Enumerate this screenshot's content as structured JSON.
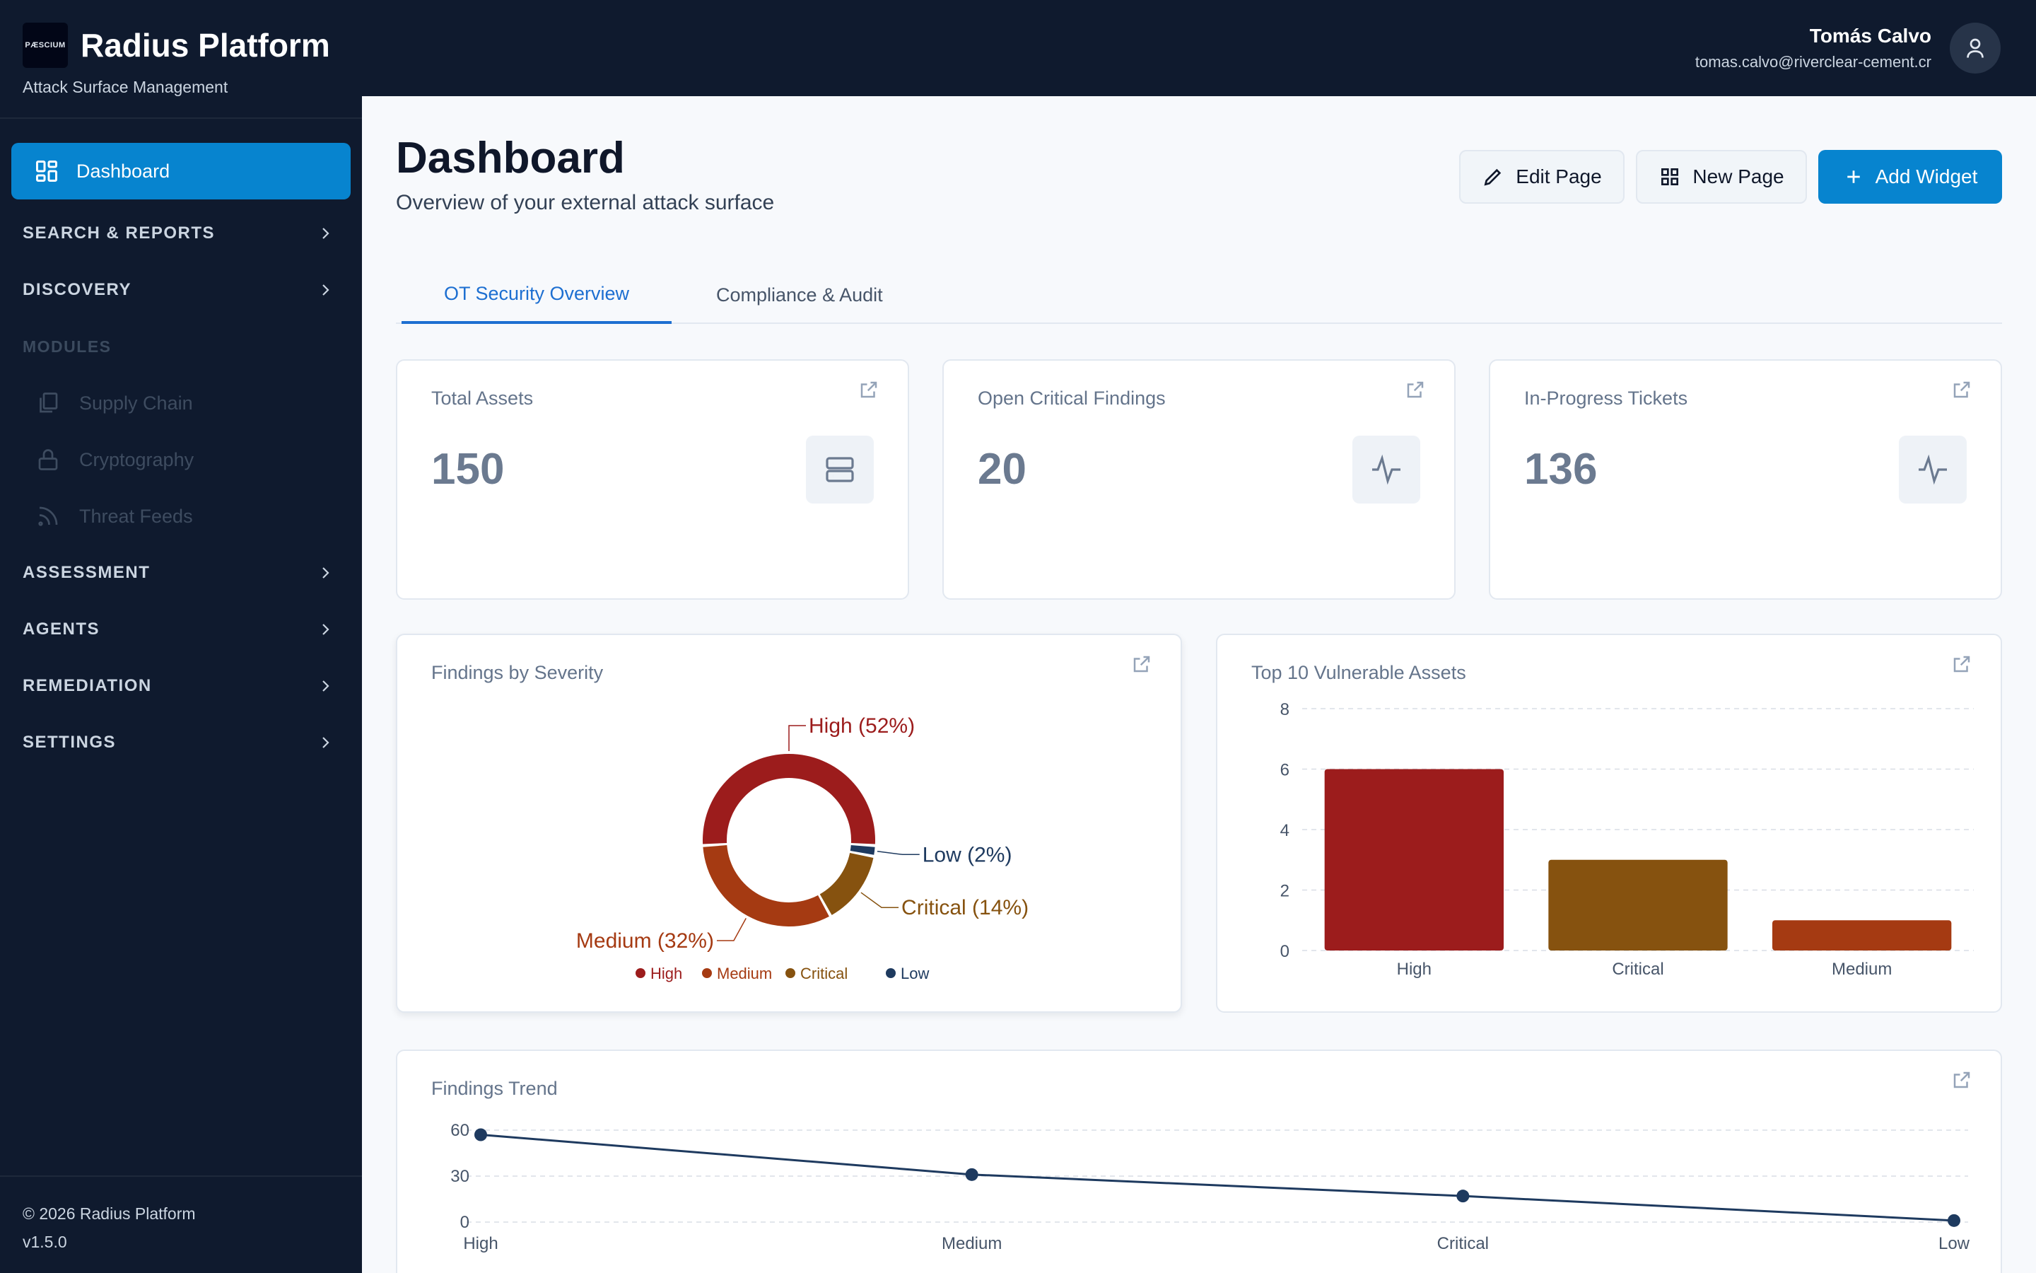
{
  "app": {
    "logo_text": "PÆSCIUM",
    "title": "Radius Platform",
    "subtitle": "Attack Surface Management"
  },
  "sidebar": {
    "active_item": "Dashboard",
    "sections": [
      {
        "label": "SEARCH & REPORTS"
      },
      {
        "label": "DISCOVERY"
      }
    ],
    "modules_label": "MODULES",
    "modules": [
      "Supply Chain",
      "Cryptography",
      "Threat Feeds"
    ],
    "sections_after": [
      {
        "label": "ASSESSMENT"
      },
      {
        "label": "AGENTS"
      },
      {
        "label": "REMEDIATION"
      },
      {
        "label": "SETTINGS"
      }
    ],
    "footer_copyright": "© 2026 Radius Platform",
    "footer_version": "v1.5.0"
  },
  "user": {
    "name": "Tomás Calvo",
    "email": "tomas.calvo@riverclear-cement.cr"
  },
  "page": {
    "title": "Dashboard",
    "subtitle": "Overview of your external attack surface",
    "buttons": {
      "edit": "Edit Page",
      "new": "New Page",
      "add": "Add Widget"
    },
    "tabs": [
      "OT Security Overview",
      "Compliance & Audit"
    ]
  },
  "stats": [
    {
      "label": "Total Assets",
      "value": "150",
      "icon": "server-icon"
    },
    {
      "label": "Open Critical Findings",
      "value": "20",
      "icon": "activity-icon"
    },
    {
      "label": "In-Progress Tickets",
      "value": "136",
      "icon": "activity-icon"
    }
  ],
  "colors": {
    "high": "#9c1c1c",
    "medium": "#a53a12",
    "critical": "#86520f",
    "low": "#1e3a5f",
    "accent": "#0784cf"
  },
  "chart_data": [
    {
      "type": "pie",
      "title": "Findings by Severity",
      "slices": [
        {
          "label": "High",
          "value": 52
        },
        {
          "label": "Low",
          "value": 2
        },
        {
          "label": "Critical",
          "value": 14
        },
        {
          "label": "Medium",
          "value": 32
        }
      ],
      "slice_labels": [
        "High (52%)",
        "Low (2%)",
        "Critical (14%)",
        "Medium (32%)"
      ],
      "legend": [
        "High",
        "Medium",
        "Critical",
        "Low"
      ],
      "legend_position": "bottom"
    },
    {
      "type": "bar",
      "title": "Top 10 Vulnerable Assets",
      "categories": [
        "High",
        "Critical",
        "Medium"
      ],
      "values": [
        6,
        3,
        1
      ],
      "ylim": [
        0,
        8
      ],
      "yticks": [
        0,
        2,
        4,
        6,
        8
      ],
      "grid": true
    },
    {
      "type": "line",
      "title": "Findings Trend",
      "categories": [
        "High",
        "Medium",
        "Critical",
        "Low"
      ],
      "values": [
        57,
        31,
        17,
        1
      ],
      "ylim": [
        0,
        60
      ],
      "yticks": [
        0,
        30,
        60
      ],
      "grid": true
    }
  ]
}
